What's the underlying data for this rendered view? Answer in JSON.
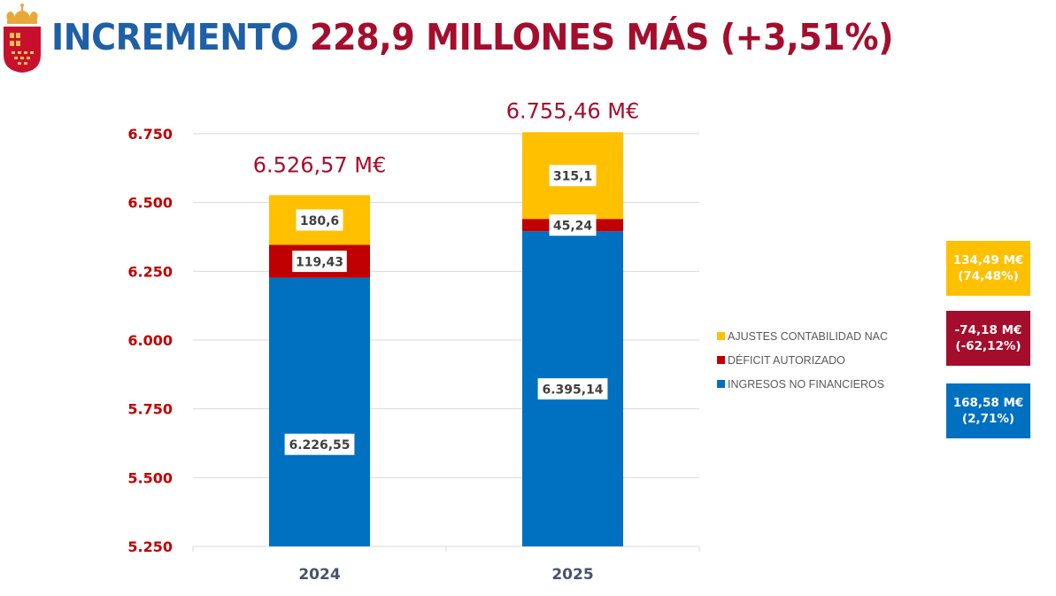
{
  "title": {
    "part1": "INCREMENTO",
    "part2": "228,9 MILLONES MÁS (+3,51%)"
  },
  "emblem": {
    "icon": "murcia-coat-of-arms-icon"
  },
  "colors": {
    "ajustes": "#ffc000",
    "deficit": "#c00000",
    "ingresos": "#0070c0",
    "axis_label": "#c00000",
    "title_blue": "#1f5fa6",
    "title_red": "#a50d2d",
    "total_label": "#a50d2d",
    "delta_red_bg": "#a50d2d"
  },
  "chart_data": {
    "type": "bar",
    "stacked": true,
    "title": "",
    "xlabel": "",
    "ylabel": "",
    "categories": [
      "2024",
      "2025"
    ],
    "ylim": [
      5250,
      6750
    ],
    "yticks": [
      5250,
      5500,
      5750,
      6000,
      6250,
      6500,
      6750
    ],
    "ytick_labels": [
      "5.250",
      "5.500",
      "5.750",
      "6.000",
      "6.250",
      "6.500",
      "6.750"
    ],
    "grid": true,
    "series": [
      {
        "name": "INGRESOS NO FINANCIEROS",
        "values": [
          6226.55,
          6395.14
        ],
        "labels": [
          "6.226,55",
          "6.395,14"
        ],
        "color": "#0070c0"
      },
      {
        "name": "DÉFICIT AUTORIZADO",
        "values": [
          119.43,
          45.24
        ],
        "labels": [
          "119,43",
          "45,24"
        ],
        "color": "#c00000"
      },
      {
        "name": "AJUSTES CONTABILIDAD NAC",
        "values": [
          180.6,
          315.1
        ],
        "labels": [
          "180,6",
          "315,1"
        ],
        "color": "#ffc000"
      }
    ],
    "totals": [
      6526.57,
      6755.46
    ],
    "total_labels": [
      "6.526,57 M€",
      "6.755,46 M€"
    ],
    "legend": {
      "placement": "right",
      "entries": [
        "AJUSTES CONTABILIDAD NAC",
        "DÉFICIT AUTORIZADO",
        "INGRESOS NO FINANCIEROS"
      ]
    }
  },
  "deltas": [
    {
      "series": "AJUSTES CONTABILIDAD NAC",
      "amount": "134,49 M€",
      "percent": "(74,48%)",
      "color": "#ffc000"
    },
    {
      "series": "DÉFICIT AUTORIZADO",
      "amount": "-74,18 M€",
      "percent": "(-62,12%)",
      "color": "#a50d2d"
    },
    {
      "series": "INGRESOS NO FINANCIEROS",
      "amount": "168,58 M€",
      "percent": "(2,71%)",
      "color": "#0070c0"
    }
  ]
}
